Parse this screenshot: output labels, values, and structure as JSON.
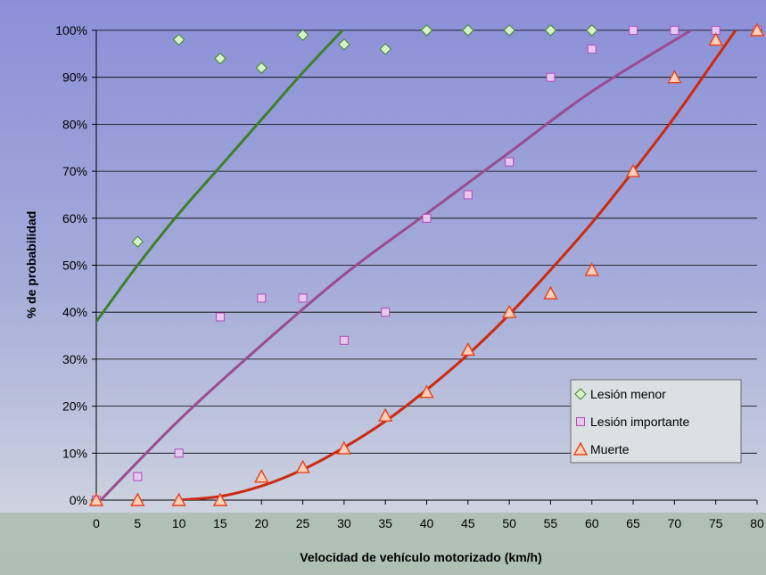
{
  "chart_data": {
    "type": "scatter",
    "xlabel": "Velocidad de vehículo motorizado (km/h)",
    "ylabel": "% de probabilidad",
    "xlim": [
      0,
      80
    ],
    "ylim": [
      0,
      100
    ],
    "x_ticks": [
      "0",
      "5",
      "10",
      "15",
      "20",
      "25",
      "30",
      "35",
      "40",
      "45",
      "50",
      "55",
      "60",
      "65",
      "70",
      "75",
      "80"
    ],
    "y_ticks": [
      "0%",
      "10%",
      "20%",
      "30%",
      "40%",
      "50%",
      "60%",
      "70%",
      "80%",
      "90%",
      "100%"
    ],
    "grid": "horizontal",
    "legend_position": "bottom-right",
    "series": [
      {
        "name": "Lesión menor",
        "marker": "diamond",
        "marker_fill": "#d9f2c9",
        "marker_stroke": "#3c8a2c",
        "trend_color": "#3f7f2c",
        "points": [
          [
            0,
            0
          ],
          [
            5,
            55
          ],
          [
            10,
            98
          ],
          [
            15,
            94
          ],
          [
            20,
            92
          ],
          [
            25,
            99
          ],
          [
            30,
            97
          ],
          [
            35,
            96
          ],
          [
            40,
            100
          ],
          [
            45,
            100
          ],
          [
            50,
            100
          ],
          [
            55,
            100
          ],
          [
            60,
            100
          ],
          [
            80,
            100
          ]
        ],
        "trend": [
          [
            0,
            38
          ],
          [
            5,
            50
          ],
          [
            10,
            61
          ],
          [
            15,
            71
          ],
          [
            20,
            81
          ],
          [
            25,
            91
          ],
          [
            29.8,
            100
          ]
        ]
      },
      {
        "name": "Lesión importante",
        "marker": "square",
        "marker_fill": "#e6c8ee",
        "marker_stroke": "#b04bb8",
        "trend_color": "#9a4c90",
        "points": [
          [
            0,
            0
          ],
          [
            5,
            5
          ],
          [
            10,
            10
          ],
          [
            15,
            39
          ],
          [
            20,
            43
          ],
          [
            25,
            43
          ],
          [
            30,
            34
          ],
          [
            35,
            40
          ],
          [
            40,
            60
          ],
          [
            45,
            65
          ],
          [
            50,
            72
          ],
          [
            55,
            90
          ],
          [
            60,
            96
          ],
          [
            65,
            100
          ],
          [
            70,
            100
          ],
          [
            75,
            100
          ],
          [
            80,
            100
          ]
        ],
        "trend": [
          [
            0,
            -1
          ],
          [
            10,
            17
          ],
          [
            20,
            33
          ],
          [
            30,
            48
          ],
          [
            40,
            61
          ],
          [
            50,
            74
          ],
          [
            60,
            87
          ],
          [
            72,
            100
          ]
        ]
      },
      {
        "name": "Muerte",
        "marker": "triangle",
        "marker_fill": "#ffd0b8",
        "marker_stroke": "#e8401c",
        "trend_color": "#cc2a10",
        "points": [
          [
            0,
            0
          ],
          [
            5,
            0
          ],
          [
            10,
            0
          ],
          [
            15,
            0
          ],
          [
            20,
            5
          ],
          [
            25,
            7
          ],
          [
            30,
            11
          ],
          [
            35,
            18
          ],
          [
            40,
            23
          ],
          [
            45,
            32
          ],
          [
            50,
            40
          ],
          [
            55,
            44
          ],
          [
            60,
            49
          ],
          [
            65,
            70
          ],
          [
            70,
            90
          ],
          [
            75,
            98
          ],
          [
            80,
            100
          ]
        ],
        "trend": [
          [
            10,
            0
          ],
          [
            15,
            0.8
          ],
          [
            20,
            3
          ],
          [
            25,
            6.5
          ],
          [
            30,
            11.2
          ],
          [
            35,
            16.8
          ],
          [
            40,
            23.5
          ],
          [
            45,
            31
          ],
          [
            50,
            39.5
          ],
          [
            55,
            49
          ],
          [
            60,
            59
          ],
          [
            65,
            70
          ],
          [
            70,
            81.5
          ],
          [
            75,
            94
          ],
          [
            77.4,
            100
          ]
        ]
      }
    ]
  }
}
